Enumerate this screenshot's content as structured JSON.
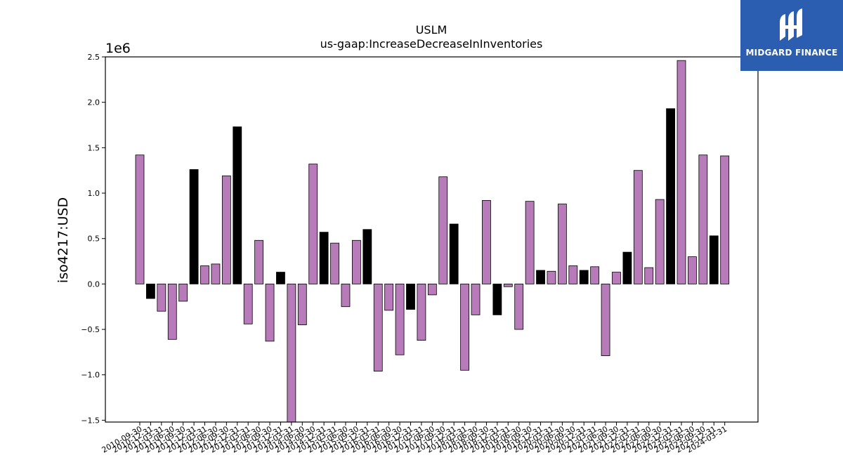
{
  "chart_data": {
    "type": "bar",
    "title": "USLM",
    "subtitle": "us-gaap:IncreaseDecreaseInInventories",
    "ylabel": "iso4217:USD",
    "xlabel": "",
    "y_scale_label": "1e6",
    "ylim": [
      -1.52,
      2.5
    ],
    "yticks": [
      -1.5,
      -1.0,
      -0.5,
      0.0,
      0.5,
      1.0,
      1.5,
      2.0,
      2.5
    ],
    "ytick_labels": [
      "−1.5",
      "−1.0",
      "−0.5",
      "0.0",
      "0.5",
      "1.0",
      "1.5",
      "2.0",
      "2.5"
    ],
    "grid": false,
    "bar_color_primary": "#b77bba",
    "bar_color_highlight": "#000000",
    "bars": [
      {
        "label": "2010-09-30",
        "value": 1.42,
        "highlight": false
      },
      {
        "label": "2010-12-31",
        "value": -0.16,
        "highlight": true
      },
      {
        "label": "2011-03-31",
        "value": -0.3,
        "highlight": false
      },
      {
        "label": "2011-06-30",
        "value": -0.61,
        "highlight": false
      },
      {
        "label": "2011-09-30",
        "value": -0.19,
        "highlight": false
      },
      {
        "label": "2011-12-31",
        "value": 1.26,
        "highlight": true
      },
      {
        "label": "2012-03-31",
        "value": 0.2,
        "highlight": false
      },
      {
        "label": "2012-06-30",
        "value": 0.22,
        "highlight": false
      },
      {
        "label": "2012-09-30",
        "value": 1.19,
        "highlight": false
      },
      {
        "label": "2012-12-31",
        "value": 1.73,
        "highlight": true
      },
      {
        "label": "2013-03-31",
        "value": -0.44,
        "highlight": false
      },
      {
        "label": "2013-06-30",
        "value": 0.48,
        "highlight": false
      },
      {
        "label": "2013-09-30",
        "value": -0.63,
        "highlight": false
      },
      {
        "label": "2013-12-31",
        "value": 0.13,
        "highlight": true
      },
      {
        "label": "2014-03-31",
        "value": -1.55,
        "highlight": false
      },
      {
        "label": "2014-06-30",
        "value": -0.45,
        "highlight": false
      },
      {
        "label": "2014-09-30",
        "value": 1.32,
        "highlight": false
      },
      {
        "label": "2014-12-31",
        "value": 0.57,
        "highlight": true
      },
      {
        "label": "2015-03-31",
        "value": 0.45,
        "highlight": false
      },
      {
        "label": "2015-06-30",
        "value": -0.25,
        "highlight": false
      },
      {
        "label": "2015-09-30",
        "value": 0.48,
        "highlight": false
      },
      {
        "label": "2015-12-31",
        "value": 0.6,
        "highlight": true
      },
      {
        "label": "2016-03-31",
        "value": -0.96,
        "highlight": false
      },
      {
        "label": "2016-06-30",
        "value": -0.29,
        "highlight": false
      },
      {
        "label": "2016-09-30",
        "value": -0.78,
        "highlight": false
      },
      {
        "label": "2016-12-31",
        "value": -0.28,
        "highlight": true
      },
      {
        "label": "2017-03-31",
        "value": -0.62,
        "highlight": false
      },
      {
        "label": "2017-06-30",
        "value": -0.12,
        "highlight": false
      },
      {
        "label": "2017-09-30",
        "value": 1.18,
        "highlight": false
      },
      {
        "label": "2017-12-31",
        "value": 0.66,
        "highlight": true
      },
      {
        "label": "2018-03-31",
        "value": -0.95,
        "highlight": false
      },
      {
        "label": "2018-06-30",
        "value": -0.34,
        "highlight": false
      },
      {
        "label": "2018-09-30",
        "value": 0.92,
        "highlight": false
      },
      {
        "label": "2018-12-31",
        "value": -0.34,
        "highlight": true
      },
      {
        "label": "2019-03-31",
        "value": -0.03,
        "highlight": false
      },
      {
        "label": "2019-06-30",
        "value": -0.5,
        "highlight": false
      },
      {
        "label": "2019-09-30",
        "value": 0.91,
        "highlight": false
      },
      {
        "label": "2019-12-31",
        "value": 0.15,
        "highlight": true
      },
      {
        "label": "2020-03-31",
        "value": 0.14,
        "highlight": false
      },
      {
        "label": "2020-06-30",
        "value": 0.88,
        "highlight": false
      },
      {
        "label": "2020-09-30",
        "value": 0.2,
        "highlight": false
      },
      {
        "label": "2020-12-31",
        "value": 0.15,
        "highlight": true
      },
      {
        "label": "2021-03-31",
        "value": 0.19,
        "highlight": false
      },
      {
        "label": "2021-06-30",
        "value": -0.79,
        "highlight": false
      },
      {
        "label": "2021-09-30",
        "value": 0.13,
        "highlight": false
      },
      {
        "label": "2021-12-31",
        "value": 0.35,
        "highlight": true
      },
      {
        "label": "2022-03-31",
        "value": 1.25,
        "highlight": false
      },
      {
        "label": "2022-06-30",
        "value": 0.18,
        "highlight": false
      },
      {
        "label": "2022-09-30",
        "value": 0.93,
        "highlight": false
      },
      {
        "label": "2022-12-31",
        "value": 1.93,
        "highlight": true
      },
      {
        "label": "2023-03-31",
        "value": 2.46,
        "highlight": false
      },
      {
        "label": "2023-06-30",
        "value": 0.3,
        "highlight": false
      },
      {
        "label": "2023-09-30",
        "value": 1.42,
        "highlight": false
      },
      {
        "label": "2023-12-31",
        "value": 0.53,
        "highlight": true
      },
      {
        "label": "2024-03-31",
        "value": 1.41,
        "highlight": false
      }
    ]
  },
  "logo": {
    "text": "MIDGARD FINANCE",
    "icon": "midgard-logo-icon"
  }
}
